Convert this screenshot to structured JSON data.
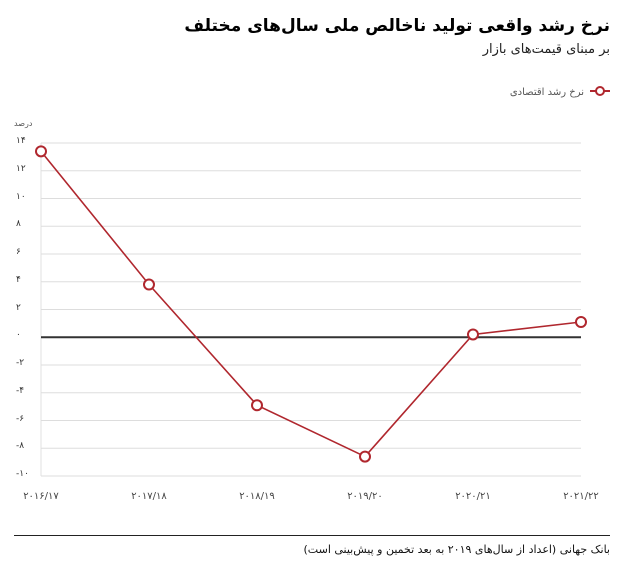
{
  "header": {
    "title": "نرخ رشد واقعی تولید ناخالص ملی سال‌های مختلف",
    "subtitle": "بر مبنای قیمت‌های بازار"
  },
  "legend": {
    "icon": "line-circle-marker-icon",
    "label": "نرخ رشد اقتصادی",
    "color": "#b0272e"
  },
  "axis": {
    "unit_label": "درصد",
    "y_ticks": [
      "۱۴",
      "۱۲",
      "۱۰",
      "۸",
      "۶",
      "۴",
      "۲",
      "۰",
      "-۲",
      "-۴",
      "-۶",
      "-۸",
      "-۱۰"
    ],
    "x_ticks": [
      "۲۰۱۶/۱۷",
      "۲۰۱۷/۱۸",
      "۲۰۱۸/۱۹",
      "۲۰۱۹/۲۰",
      "۲۰۲۰/۲۱",
      "۲۰۲۱/۲۲"
    ]
  },
  "footer": {
    "source": "بانک جهانی (اعداد از سال‌های ۲۰۱۹ به بعد تخمین و پیش‌بینی است)"
  },
  "colors": {
    "series": "#b0272e",
    "zero_line": "#333333",
    "grid": "#dddddd"
  },
  "chart_data": {
    "type": "line",
    "title": "نرخ رشد واقعی تولید ناخالص ملی سال‌های مختلف",
    "subtitle": "بر مبنای قیمت‌های بازار",
    "xlabel": "",
    "ylabel": "درصد",
    "categories": [
      "2016/17",
      "2017/18",
      "2018/19",
      "2019/20",
      "2020/21",
      "2021/22"
    ],
    "series": [
      {
        "name": "نرخ رشد اقتصادی",
        "values": [
          13.4,
          3.8,
          -4.9,
          -8.6,
          0.2,
          1.1
        ]
      }
    ],
    "ylim": [
      -10,
      14
    ],
    "yticks": [
      14,
      12,
      10,
      8,
      6,
      4,
      2,
      0,
      -2,
      -4,
      -6,
      -8,
      -10
    ],
    "grid": true,
    "legend_position": "top-right",
    "source": "بانک جهانی (اعداد از سال‌های ۲۰۱۹ به بعد تخمین و پیش‌بینی است)"
  }
}
